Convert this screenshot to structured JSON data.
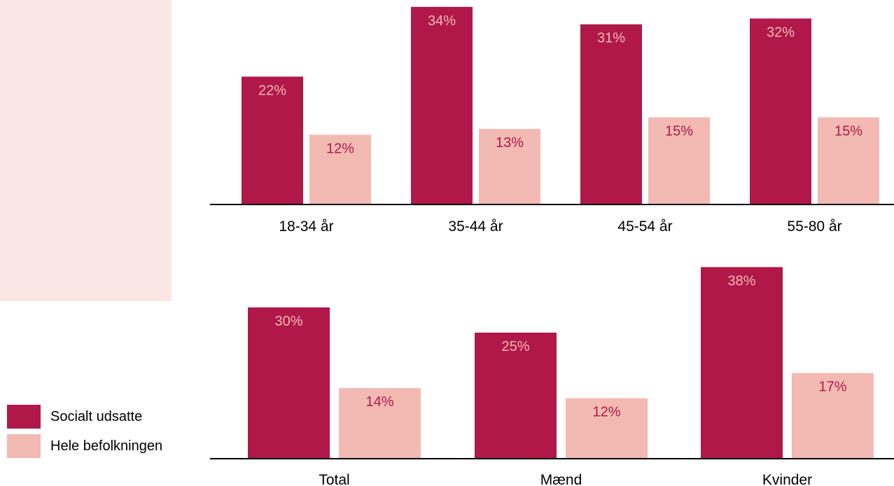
{
  "colors": {
    "socialt_udsatte": "#b0184a",
    "hele_befolkningen": "#f2bab3",
    "panel": "#fbe6e6",
    "text_on_dark": "#f2bab3",
    "text_on_light": "#b0184a",
    "axis": "#000000"
  },
  "legend": {
    "items": [
      {
        "label": "Socialt udsatte",
        "color": "#b0184a"
      },
      {
        "label": "Hele befolkningen",
        "color": "#f2bab3"
      }
    ]
  },
  "chart_data": [
    {
      "type": "bar",
      "categories": [
        "18-34 år",
        "35-44 år",
        "45-54 år",
        "55-80 år"
      ],
      "series": [
        {
          "name": "Socialt udsatte",
          "values": [
            22,
            34,
            31,
            32
          ],
          "labels": [
            "22%",
            "34%",
            "31%",
            "32%"
          ]
        },
        {
          "name": "Hele befolkningen",
          "values": [
            12,
            13,
            15,
            15
          ],
          "labels": [
            "12%",
            "13%",
            "15%",
            "15%"
          ]
        }
      ],
      "unit": "%",
      "ylim": [
        0,
        36
      ],
      "grid": false
    },
    {
      "type": "bar",
      "categories": [
        "Total",
        "Mænd",
        "Kvinder"
      ],
      "series": [
        {
          "name": "Socialt udsatte",
          "values": [
            30,
            25,
            38
          ],
          "labels": [
            "30%",
            "25%",
            "38%"
          ]
        },
        {
          "name": "Hele befolkningen",
          "values": [
            14,
            12,
            17
          ],
          "labels": [
            "14%",
            "12%",
            "17%"
          ]
        }
      ],
      "unit": "%",
      "ylim": [
        0,
        40
      ],
      "grid": false
    }
  ]
}
